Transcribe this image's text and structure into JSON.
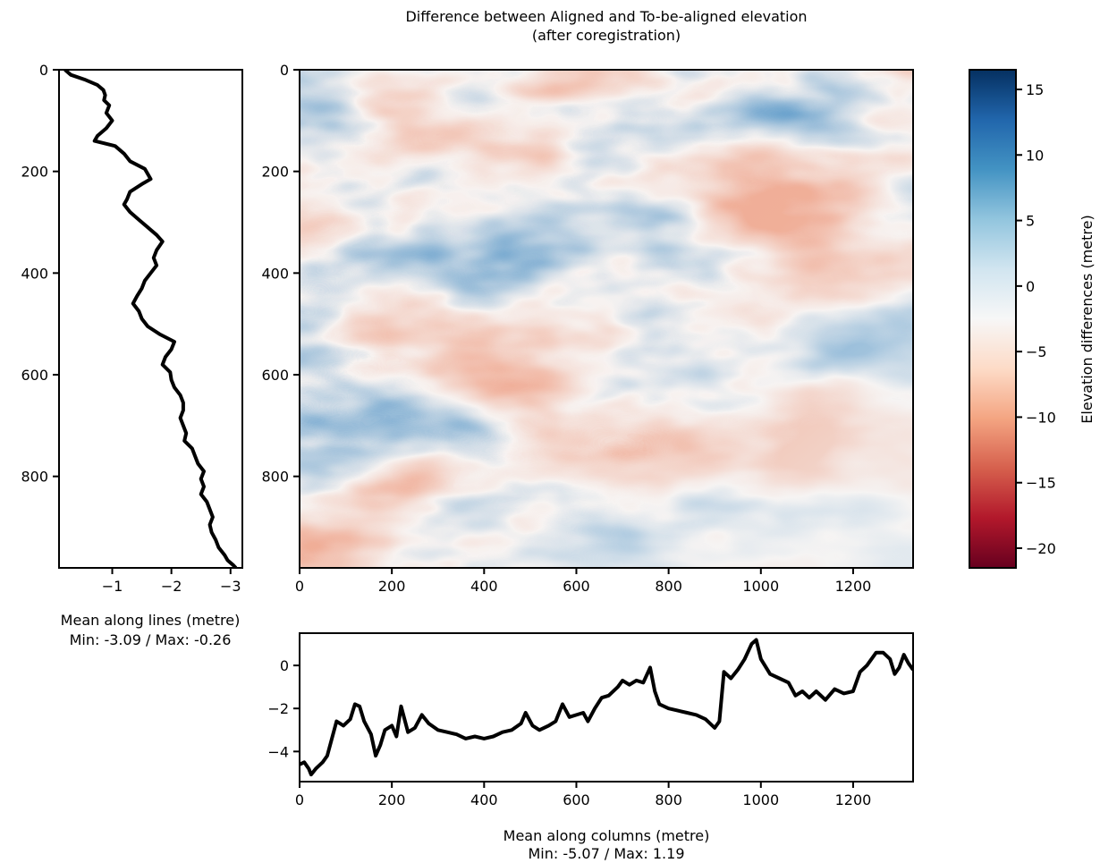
{
  "figure": {
    "title_line1": "Difference between Aligned and To-be-aligned elevation",
    "title_line2": "(after coregistration)"
  },
  "colors": {
    "line": "#000000",
    "cmap": "RdBu",
    "cmap_stops": [
      "#67001f",
      "#b2182b",
      "#d6604d",
      "#f4a582",
      "#fddbc7",
      "#f7f7f7",
      "#d1e5f0",
      "#92c5de",
      "#4393c3",
      "#2166ac",
      "#053061"
    ]
  },
  "chart_data": [
    {
      "id": "main_map",
      "type": "heatmap",
      "x_ticks": [
        0,
        200,
        400,
        600,
        800,
        1000,
        1200
      ],
      "y_ticks": [
        0,
        200,
        400,
        600,
        800
      ],
      "xlim": [
        0,
        1330
      ],
      "ylim": [
        980,
        0
      ],
      "colormap": "RdBu",
      "value_range": [
        -21.5,
        16.5
      ]
    },
    {
      "id": "colorbar",
      "type": "colorbar",
      "label": "Elevation differences (metre)",
      "ticks": [
        15,
        10,
        5,
        0,
        -5,
        -10,
        -15,
        -20
      ],
      "tick_labels": [
        "15",
        "10",
        "5",
        "0",
        "−5",
        "−10",
        "−15",
        "−20"
      ],
      "range": [
        -21.5,
        16.5
      ]
    },
    {
      "id": "mean_lines",
      "type": "line",
      "orientation": "vertical",
      "xlabel": "Mean along lines (metre)",
      "stats": "Min: -3.09 / Max: -0.26",
      "x_ticks": [
        -1,
        -2,
        -3
      ],
      "x_tick_labels": [
        "−1",
        "−2",
        "−3"
      ],
      "y_ticks": [
        0,
        200,
        400,
        600,
        800
      ],
      "xlim": [
        -0.1,
        -3.2
      ],
      "ylim": [
        980,
        0
      ],
      "points": [
        [
          0,
          -0.2
        ],
        [
          10,
          -0.3
        ],
        [
          20,
          -0.55
        ],
        [
          30,
          -0.75
        ],
        [
          40,
          -0.85
        ],
        [
          50,
          -0.88
        ],
        [
          60,
          -0.86
        ],
        [
          70,
          -0.95
        ],
        [
          85,
          -0.9
        ],
        [
          100,
          -1.0
        ],
        [
          115,
          -0.9
        ],
        [
          130,
          -0.75
        ],
        [
          140,
          -0.7
        ],
        [
          150,
          -1.05
        ],
        [
          165,
          -1.2
        ],
        [
          180,
          -1.3
        ],
        [
          195,
          -1.55
        ],
        [
          205,
          -1.6
        ],
        [
          215,
          -1.65
        ],
        [
          225,
          -1.5
        ],
        [
          240,
          -1.3
        ],
        [
          255,
          -1.25
        ],
        [
          265,
          -1.2
        ],
        [
          280,
          -1.3
        ],
        [
          295,
          -1.45
        ],
        [
          310,
          -1.6
        ],
        [
          325,
          -1.75
        ],
        [
          338,
          -1.85
        ],
        [
          355,
          -1.75
        ],
        [
          370,
          -1.7
        ],
        [
          385,
          -1.75
        ],
        [
          400,
          -1.65
        ],
        [
          415,
          -1.55
        ],
        [
          430,
          -1.5
        ],
        [
          445,
          -1.42
        ],
        [
          460,
          -1.35
        ],
        [
          475,
          -1.45
        ],
        [
          490,
          -1.5
        ],
        [
          505,
          -1.6
        ],
        [
          520,
          -1.8
        ],
        [
          535,
          -2.05
        ],
        [
          550,
          -2.0
        ],
        [
          565,
          -1.9
        ],
        [
          580,
          -1.85
        ],
        [
          595,
          -1.98
        ],
        [
          610,
          -2.0
        ],
        [
          625,
          -2.05
        ],
        [
          640,
          -2.15
        ],
        [
          655,
          -2.2
        ],
        [
          670,
          -2.2
        ],
        [
          685,
          -2.15
        ],
        [
          700,
          -2.2
        ],
        [
          715,
          -2.25
        ],
        [
          730,
          -2.22
        ],
        [
          745,
          -2.35
        ],
        [
          760,
          -2.4
        ],
        [
          775,
          -2.45
        ],
        [
          790,
          -2.55
        ],
        [
          805,
          -2.5
        ],
        [
          820,
          -2.55
        ],
        [
          835,
          -2.5
        ],
        [
          850,
          -2.6
        ],
        [
          865,
          -2.65
        ],
        [
          880,
          -2.7
        ],
        [
          895,
          -2.65
        ],
        [
          910,
          -2.68
        ],
        [
          925,
          -2.75
        ],
        [
          940,
          -2.8
        ],
        [
          955,
          -2.9
        ],
        [
          965,
          -2.95
        ],
        [
          975,
          -3.05
        ],
        [
          980,
          -3.09
        ]
      ]
    },
    {
      "id": "mean_columns",
      "type": "line",
      "xlabel": "Mean along columns (metre)",
      "stats": "Min: -5.07 / Max: 1.19",
      "x_ticks": [
        0,
        200,
        400,
        600,
        800,
        1000,
        1200
      ],
      "y_ticks": [
        0,
        -2,
        -4
      ],
      "y_tick_labels": [
        "0",
        "−2",
        "−4"
      ],
      "xlim": [
        0,
        1330
      ],
      "ylim": [
        -5.4,
        1.5
      ],
      "points": [
        [
          0,
          -4.6
        ],
        [
          10,
          -4.5
        ],
        [
          20,
          -4.8
        ],
        [
          25,
          -5.07
        ],
        [
          35,
          -4.8
        ],
        [
          50,
          -4.5
        ],
        [
          60,
          -4.2
        ],
        [
          70,
          -3.4
        ],
        [
          80,
          -2.6
        ],
        [
          95,
          -2.8
        ],
        [
          110,
          -2.5
        ],
        [
          120,
          -1.8
        ],
        [
          130,
          -1.9
        ],
        [
          140,
          -2.6
        ],
        [
          155,
          -3.2
        ],
        [
          165,
          -4.2
        ],
        [
          175,
          -3.7
        ],
        [
          185,
          -3.0
        ],
        [
          200,
          -2.8
        ],
        [
          210,
          -3.3
        ],
        [
          220,
          -1.9
        ],
        [
          235,
          -3.1
        ],
        [
          250,
          -2.9
        ],
        [
          265,
          -2.3
        ],
        [
          280,
          -2.7
        ],
        [
          300,
          -3.0
        ],
        [
          320,
          -3.1
        ],
        [
          340,
          -3.2
        ],
        [
          360,
          -3.4
        ],
        [
          380,
          -3.3
        ],
        [
          400,
          -3.4
        ],
        [
          420,
          -3.3
        ],
        [
          440,
          -3.1
        ],
        [
          460,
          -3.0
        ],
        [
          480,
          -2.7
        ],
        [
          490,
          -2.2
        ],
        [
          505,
          -2.8
        ],
        [
          520,
          -3.0
        ],
        [
          540,
          -2.8
        ],
        [
          555,
          -2.6
        ],
        [
          570,
          -1.8
        ],
        [
          585,
          -2.4
        ],
        [
          600,
          -2.3
        ],
        [
          615,
          -2.2
        ],
        [
          625,
          -2.6
        ],
        [
          640,
          -2.0
        ],
        [
          655,
          -1.5
        ],
        [
          670,
          -1.4
        ],
        [
          690,
          -1.0
        ],
        [
          700,
          -0.7
        ],
        [
          715,
          -0.9
        ],
        [
          730,
          -0.7
        ],
        [
          745,
          -0.8
        ],
        [
          760,
          -0.1
        ],
        [
          770,
          -1.2
        ],
        [
          780,
          -1.8
        ],
        [
          800,
          -2.0
        ],
        [
          820,
          -2.1
        ],
        [
          840,
          -2.2
        ],
        [
          860,
          -2.3
        ],
        [
          880,
          -2.5
        ],
        [
          900,
          -2.9
        ],
        [
          910,
          -2.6
        ],
        [
          920,
          -0.3
        ],
        [
          935,
          -0.6
        ],
        [
          950,
          -0.2
        ],
        [
          965,
          0.3
        ],
        [
          980,
          1.0
        ],
        [
          990,
          1.19
        ],
        [
          1000,
          0.3
        ],
        [
          1020,
          -0.4
        ],
        [
          1040,
          -0.6
        ],
        [
          1060,
          -0.8
        ],
        [
          1075,
          -1.4
        ],
        [
          1090,
          -1.2
        ],
        [
          1105,
          -1.5
        ],
        [
          1120,
          -1.2
        ],
        [
          1140,
          -1.6
        ],
        [
          1160,
          -1.1
        ],
        [
          1180,
          -1.3
        ],
        [
          1200,
          -1.2
        ],
        [
          1215,
          -0.3
        ],
        [
          1230,
          0.0
        ],
        [
          1250,
          0.6
        ],
        [
          1265,
          0.6
        ],
        [
          1280,
          0.3
        ],
        [
          1290,
          -0.4
        ],
        [
          1300,
          -0.1
        ],
        [
          1310,
          0.5
        ],
        [
          1320,
          0.1
        ],
        [
          1330,
          -0.2
        ]
      ]
    }
  ]
}
